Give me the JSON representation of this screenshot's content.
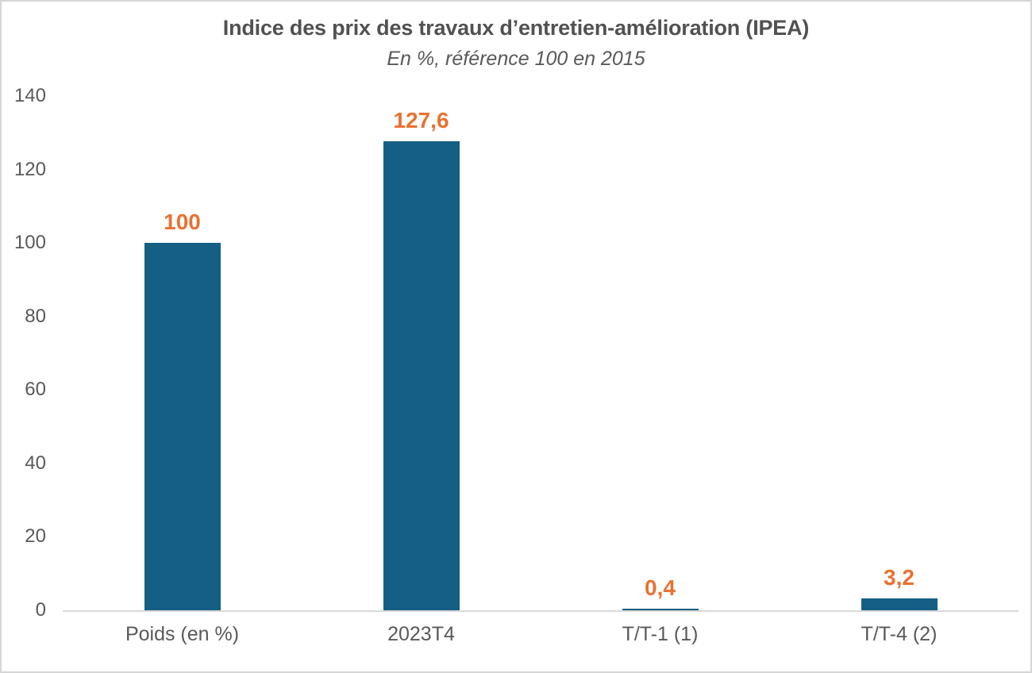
{
  "chart_data": {
    "type": "bar",
    "title": "Indice des prix des travaux d’entretien-amélioration (IPEA)",
    "subtitle": "En %, référence 100 en 2015",
    "categories": [
      "Poids (en %)",
      "2023T4",
      "T/T-1 (1)",
      "T/T-4 (2)"
    ],
    "values": [
      100,
      127.6,
      0.4,
      3.2
    ],
    "value_labels": [
      "100",
      "127,6",
      "0,4",
      "3,2"
    ],
    "ylim": [
      0,
      140
    ],
    "yticks": [
      0,
      20,
      40,
      60,
      80,
      100,
      120,
      140
    ],
    "grid": false,
    "legend_position": "none",
    "colors": {
      "bar": "#155F84",
      "value_label": "#E97132",
      "axis_text": "#595959",
      "title_text": "#515151",
      "axis_line": "#D9D9D9"
    }
  }
}
